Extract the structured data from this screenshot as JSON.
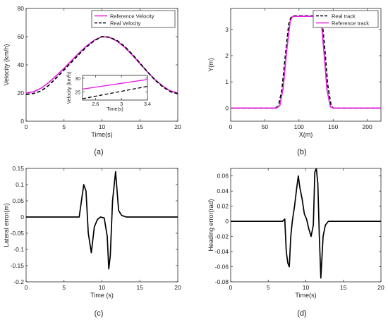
{
  "chart_data": [
    {
      "id": "a",
      "type": "line",
      "panel_label": "(a)",
      "title": "",
      "xlabel": "Time(s)",
      "ylabel": "Velocity (km/h)",
      "xlim": [
        0,
        20
      ],
      "ylim": [
        0,
        80
      ],
      "xticks": [
        "0",
        "5",
        "10",
        "15",
        "20"
      ],
      "yticks": [
        "0",
        "20",
        "40",
        "60",
        "80"
      ],
      "legend_position": "top-right",
      "series": [
        {
          "name": "Reference Velocity",
          "color": "#e020e0",
          "dash": "solid",
          "x": [
            0,
            1,
            2,
            3,
            4,
            5,
            6,
            7,
            8,
            9,
            10,
            11,
            12,
            13,
            14,
            15,
            16,
            17,
            18,
            19,
            20
          ],
          "y": [
            20,
            20.9,
            23.5,
            27.5,
            32.4,
            37.5,
            43.0,
            48.5,
            53.5,
            57.5,
            60,
            59.5,
            56.8,
            52.5,
            47.0,
            41.0,
            35.0,
            29.5,
            25.0,
            21.5,
            20
          ]
        },
        {
          "name": "Real Velocity",
          "color": "#000000",
          "dash": "dashed",
          "x": [
            0,
            1,
            2,
            3,
            4,
            5,
            6,
            7,
            8,
            9,
            10,
            11,
            12,
            13,
            14,
            15,
            16,
            17,
            18,
            19,
            20
          ],
          "y": [
            19,
            19.7,
            21.5,
            25.5,
            30.8,
            36.3,
            42.0,
            47.6,
            52.8,
            57.2,
            60,
            59.6,
            57.2,
            53.0,
            47.5,
            41.3,
            35.0,
            29.2,
            24.5,
            21.0,
            19.5
          ]
        }
      ],
      "inset": {
        "xlabel": "Time(s)",
        "ylabel": "Velocity (km/h)",
        "xlim": [
          2.4,
          3.4
        ],
        "ylim": [
          22,
          31
        ],
        "xticks": [
          "2.6",
          "3",
          "3.4"
        ],
        "yticks": [
          "25",
          "30"
        ],
        "series": [
          {
            "name": "Reference Velocity",
            "color": "#e020e0",
            "dash": "solid",
            "x": [
              2.4,
              3.4
            ],
            "y": [
              26.0,
              29.5
            ]
          },
          {
            "name": "Real Velocity",
            "color": "#000000",
            "dash": "dashed",
            "x": [
              2.4,
              3.4
            ],
            "y": [
              22.5,
              27.0
            ]
          }
        ]
      }
    },
    {
      "id": "b",
      "type": "line",
      "panel_label": "(b)",
      "title": "",
      "xlabel": "X(m)",
      "ylabel": "Y(m)",
      "xlim": [
        0,
        220
      ],
      "ylim": [
        -0.5,
        3.8
      ],
      "xticks": [
        "0",
        "50",
        "100",
        "150",
        "200"
      ],
      "yticks": [
        "0",
        "1",
        "2",
        "3"
      ],
      "legend_position": "top-right",
      "series": [
        {
          "name": "Real track",
          "color": "#000000",
          "dash": "dashed",
          "x": [
            0,
            65,
            70,
            75,
            80,
            85,
            88,
            92,
            130,
            134,
            138,
            142,
            147,
            150,
            220
          ],
          "y": [
            0,
            0,
            0.08,
            0.7,
            2.0,
            3.2,
            3.45,
            3.52,
            3.52,
            3.3,
            2.2,
            0.9,
            0.1,
            0,
            0
          ]
        },
        {
          "name": "Reference track",
          "color": "#e020e0",
          "dash": "solid",
          "x": [
            0,
            67,
            72,
            77,
            82,
            87,
            90,
            93,
            129,
            133,
            137,
            141,
            146,
            150,
            220
          ],
          "y": [
            0,
            0,
            0.1,
            0.8,
            2.2,
            3.3,
            3.48,
            3.5,
            3.5,
            3.2,
            2.0,
            0.7,
            0.05,
            0,
            0
          ]
        }
      ]
    },
    {
      "id": "c",
      "type": "line",
      "panel_label": "(c)",
      "title": "",
      "xlabel": "Time (s)",
      "ylabel": "Lateral error(m)",
      "xlim": [
        0,
        20
      ],
      "ylim": [
        -0.2,
        0.15
      ],
      "xticks": [
        "0",
        "5",
        "10",
        "15",
        "20"
      ],
      "yticks": [
        "-0.2",
        "-0.15",
        "-0.1",
        "-0.05",
        "0",
        "0.05",
        "0.1",
        "0.15"
      ],
      "series": [
        {
          "name": "",
          "color": "#000000",
          "dash": "solid",
          "x": [
            0,
            7.0,
            7.3,
            7.6,
            7.9,
            8.2,
            8.6,
            9.0,
            9.4,
            9.8,
            10.3,
            10.7,
            10.9,
            11.1,
            11.4,
            11.8,
            12.2,
            12.6,
            13.2,
            20
          ],
          "y": [
            0,
            0,
            0.05,
            0.1,
            0.08,
            -0.05,
            -0.11,
            -0.03,
            -0.008,
            0,
            -0.003,
            -0.06,
            -0.16,
            -0.12,
            0.05,
            0.14,
            0.02,
            0.005,
            0,
            0
          ]
        }
      ]
    },
    {
      "id": "d",
      "type": "line",
      "panel_label": "(d)",
      "title": "",
      "xlabel": "Time(s)",
      "ylabel": "Heading error(rad)",
      "xlim": [
        0,
        20
      ],
      "ylim": [
        -0.08,
        0.07
      ],
      "xticks": [
        "0",
        "5",
        "10",
        "15",
        "20"
      ],
      "yticks": [
        "-0.08",
        "-0.06",
        "-0.04",
        "-0.02",
        "0",
        "0.02",
        "0.04",
        "0.06"
      ],
      "series": [
        {
          "name": "",
          "color": "#000000",
          "dash": "solid",
          "x": [
            0,
            6.9,
            7.2,
            7.4,
            7.6,
            7.8,
            8.0,
            8.2,
            8.5,
            8.8,
            9.0,
            9.2,
            9.5,
            9.8,
            10.1,
            10.4,
            10.7,
            11.0,
            11.2,
            11.4,
            11.6,
            11.8,
            12.0,
            12.3,
            12.6,
            13.0,
            20
          ],
          "y": [
            0,
            0,
            0.003,
            -0.04,
            -0.055,
            -0.06,
            -0.02,
            0,
            0.02,
            0.045,
            0.06,
            0.045,
            0.03,
            0.01,
            0.003,
            -0.01,
            -0.02,
            -0.005,
            0.065,
            0.07,
            0.05,
            -0.02,
            -0.075,
            -0.02,
            -0.005,
            0,
            0
          ]
        }
      ]
    }
  ]
}
